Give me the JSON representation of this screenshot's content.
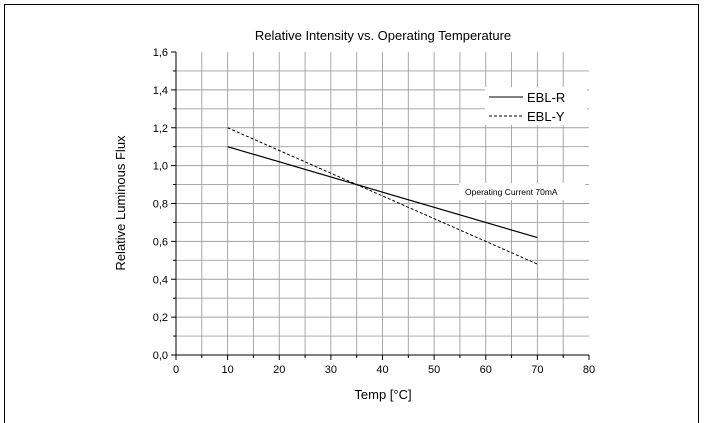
{
  "chart_data": {
    "type": "line",
    "title": "Relative Intensity vs. Operating Temperature",
    "xlabel": "Temp [°C]",
    "ylabel": "Relative Luminous Flux",
    "xlim": [
      0,
      80
    ],
    "ylim": [
      0,
      1.6
    ],
    "xticks": [
      "0",
      "10",
      "20",
      "30",
      "40",
      "50",
      "60",
      "70",
      "80"
    ],
    "yticks": [
      "0,0",
      "0,2",
      "0,4",
      "0,6",
      "0,8",
      "1,0",
      "1,2",
      "1,4",
      "1,6"
    ],
    "grid": true,
    "legend_position": "top-right",
    "annotation": "Operating Current 70mA",
    "series": [
      {
        "name": "EBL-R",
        "style": "solid",
        "color": "#000000",
        "x": [
          10,
          70
        ],
        "y": [
          1.1,
          0.62
        ]
      },
      {
        "name": "EBL-Y",
        "style": "dashed",
        "color": "#000000",
        "x": [
          10,
          70
        ],
        "y": [
          1.2,
          0.48
        ]
      }
    ]
  }
}
